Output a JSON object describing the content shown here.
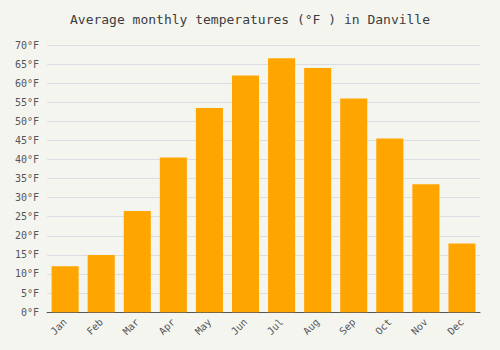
{
  "chart_data": {
    "type": "bar",
    "title": "Average monthly temperatures (°F ) in Danville",
    "categories": [
      "Jan",
      "Feb",
      "Mar",
      "Apr",
      "May",
      "Jun",
      "Jul",
      "Aug",
      "Sep",
      "Oct",
      "Nov",
      "Dec"
    ],
    "values": [
      12,
      15,
      26.5,
      40.5,
      53.5,
      62,
      66.5,
      64,
      56,
      45.5,
      33.5,
      18
    ],
    "color": "#FFA500",
    "ylim": [
      0,
      70
    ],
    "yticks": [
      {
        "value": 0,
        "label": "0°F"
      },
      {
        "value": 5,
        "label": "5°F"
      },
      {
        "value": 10,
        "label": "10°F"
      },
      {
        "value": 15,
        "label": "15°F"
      },
      {
        "value": 20,
        "label": "20°F"
      },
      {
        "value": 25,
        "label": "25°F"
      },
      {
        "value": 30,
        "label": "30°F"
      },
      {
        "value": 35,
        "label": "35°F"
      },
      {
        "value": 40,
        "label": "40°F"
      },
      {
        "value": 45,
        "label": "45°F"
      },
      {
        "value": 50,
        "label": "50°F"
      },
      {
        "value": 55,
        "label": "55°F"
      },
      {
        "value": 60,
        "label": "60°F"
      },
      {
        "value": 65,
        "label": "65°F"
      },
      {
        "value": 70,
        "label": "70°F"
      }
    ],
    "grid": true
  }
}
